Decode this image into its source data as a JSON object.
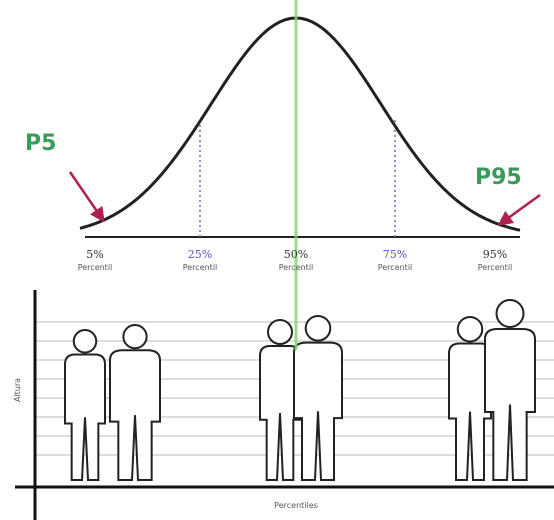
{
  "markers": {
    "left": "P5",
    "right": "P95"
  },
  "percentiles": [
    {
      "value": "5%",
      "label": "Percentil"
    },
    {
      "value": "25%",
      "label": "Percentil"
    },
    {
      "value": "50%",
      "label": "Percentil"
    },
    {
      "value": "75%",
      "label": "Percentil"
    },
    {
      "value": "95%",
      "label": "Percentil"
    }
  ],
  "y_axis_label": "Altura",
  "x_axis_label": "Percentiles"
}
